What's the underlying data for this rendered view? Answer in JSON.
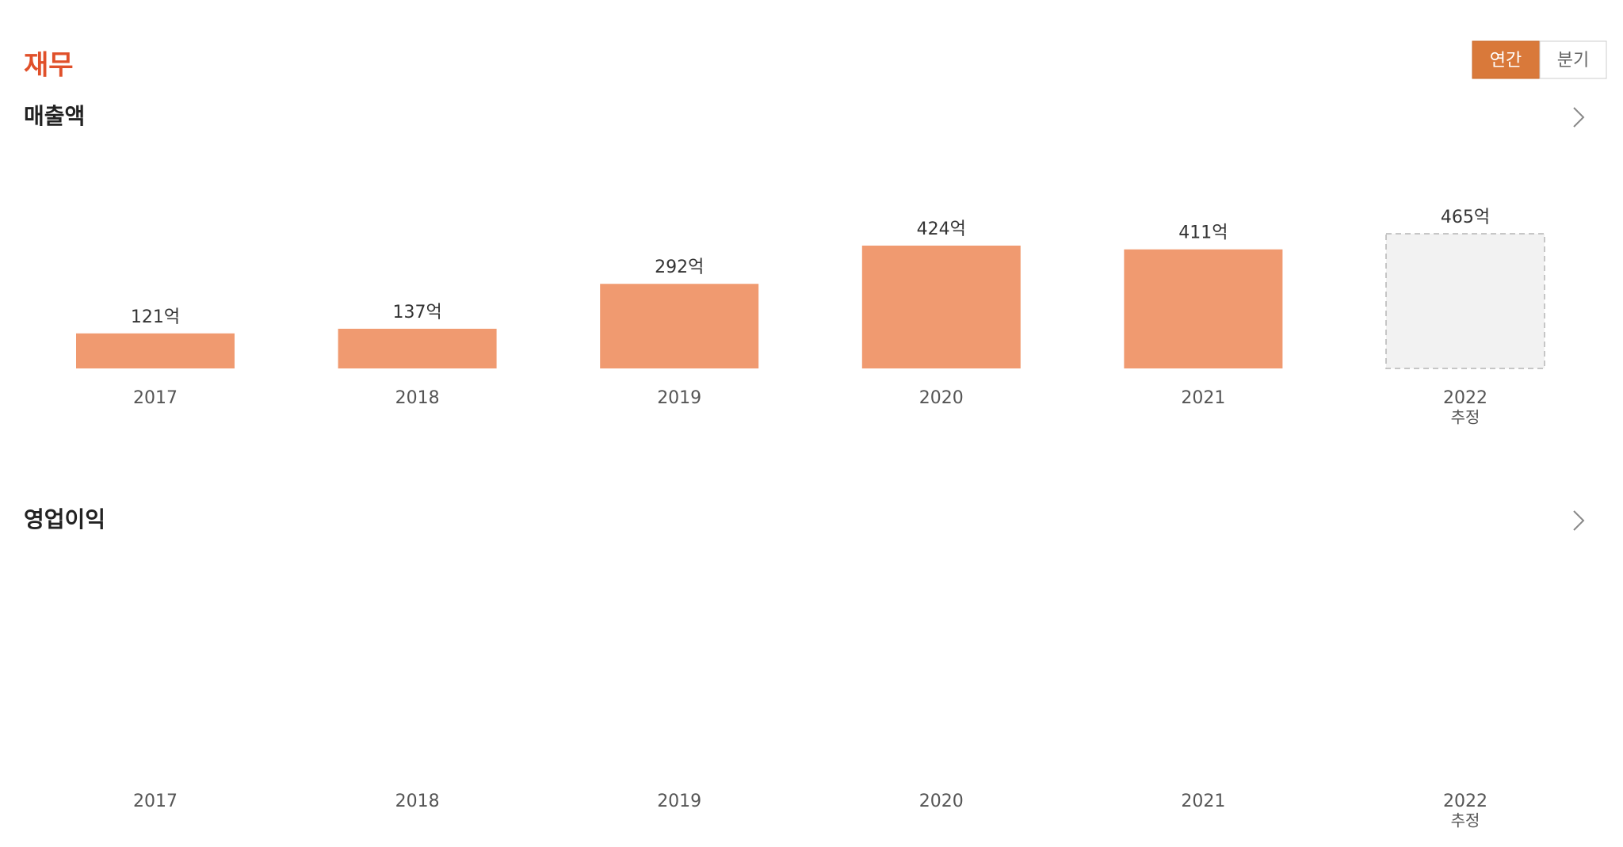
{
  "section_title": "재무",
  "period_toggle": [
    "연간",
    "분기"
  ],
  "active_toggle": 0,
  "chart_data": [
    {
      "type": "bar",
      "title": "매출액",
      "categories": [
        "2017",
        "2018",
        "2019",
        "2020",
        "2021",
        "2022"
      ],
      "category_notes": [
        null,
        null,
        null,
        null,
        null,
        "추정"
      ],
      "values": [
        121,
        137,
        292,
        424,
        411,
        465
      ],
      "value_labels": [
        "121억",
        "137억",
        "292억",
        "424억",
        "411억",
        "465억"
      ],
      "estimated": [
        false,
        false,
        false,
        false,
        false,
        true
      ],
      "color": "#f09a70",
      "estimate_color": "#f2f2f2"
    },
    {
      "type": "bar",
      "title": "영업이익",
      "categories": [
        "2017",
        "2018",
        "2019",
        "2020",
        "2021",
        "2022"
      ],
      "category_notes": [
        null,
        null,
        null,
        null,
        null,
        "추정"
      ],
      "color": "#f09a70",
      "estimate_color": "#f2f2f2"
    }
  ]
}
